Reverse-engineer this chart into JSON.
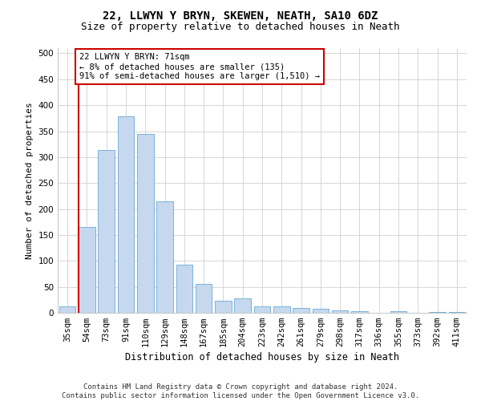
{
  "title1": "22, LLWYN Y BRYN, SKEWEN, NEATH, SA10 6DZ",
  "title2": "Size of property relative to detached houses in Neath",
  "xlabel": "Distribution of detached houses by size in Neath",
  "ylabel": "Number of detached properties",
  "categories": [
    "35sqm",
    "54sqm",
    "73sqm",
    "91sqm",
    "110sqm",
    "129sqm",
    "148sqm",
    "167sqm",
    "185sqm",
    "204sqm",
    "223sqm",
    "242sqm",
    "261sqm",
    "279sqm",
    "298sqm",
    "317sqm",
    "336sqm",
    "355sqm",
    "373sqm",
    "392sqm",
    "411sqm"
  ],
  "values": [
    13,
    165,
    314,
    378,
    345,
    215,
    93,
    55,
    23,
    28,
    13,
    13,
    9,
    8,
    5,
    3,
    0,
    3,
    0,
    2,
    2
  ],
  "bar_color": "#c5d8ee",
  "bar_edge_color": "#6aaad4",
  "annotation_text": "22 LLWYN Y BRYN: 71sqm\n← 8% of detached houses are smaller (135)\n91% of semi-detached houses are larger (1,510) →",
  "annotation_box_color": "#ffffff",
  "annotation_box_edge_color": "#cc0000",
  "vline_x_index": 1,
  "vline_color": "#cc0000",
  "ylim": [
    0,
    510
  ],
  "yticks": [
    0,
    50,
    100,
    150,
    200,
    250,
    300,
    350,
    400,
    450,
    500
  ],
  "footnote": "Contains HM Land Registry data © Crown copyright and database right 2024.\nContains public sector information licensed under the Open Government Licence v3.0.",
  "title1_fontsize": 10,
  "title2_fontsize": 9,
  "xlabel_fontsize": 8.5,
  "ylabel_fontsize": 8,
  "tick_fontsize": 7.5,
  "annotation_fontsize": 7.5,
  "footnote_fontsize": 6.5,
  "grid_color": "#d0d0d0",
  "background_color": "#ffffff"
}
